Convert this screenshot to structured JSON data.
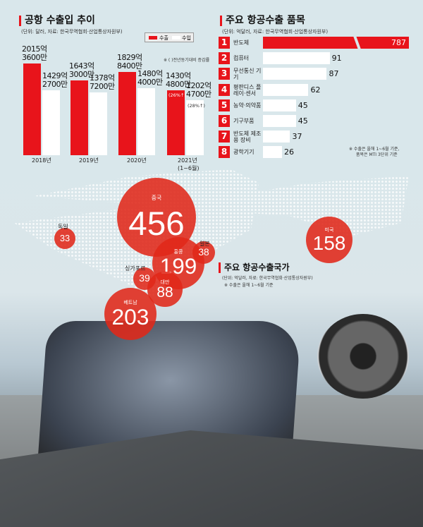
{
  "colors": {
    "export": "#e8141b",
    "import": "#ffffff",
    "bubble": "#e02819",
    "background": "#d9e7eb"
  },
  "chart_data": [
    {
      "type": "bar",
      "title": "공항 수출입 추이",
      "subtitle": "(단위: 달러, 자료: 한국무역협회·산업통상자원부)",
      "categories": [
        "2018년",
        "2019년",
        "2020년",
        "2021년 (1~6월)"
      ],
      "legend": [
        "수출",
        "수입"
      ],
      "note": "※ ( )전년동기대비 증감률",
      "series": [
        {
          "name": "수출",
          "values": [
            201536000000,
            164330000000,
            182984000000,
            143048000000
          ],
          "labels": [
            "2015억\n3600만",
            "1643억\n3000만",
            "1829억\n8400만",
            "1430억\n4800만"
          ]
        },
        {
          "name": "수입",
          "values": [
            142927000000,
            137872000000,
            148040000000,
            120247000000
          ],
          "labels": [
            "1429억\n2700만",
            "1378억\n7200만",
            "1480억\n4000만",
            "1202억\n4700만"
          ]
        }
      ],
      "annotations": {
        "export_2021": "(26%↑)",
        "import_2021": "(28%↑)"
      }
    },
    {
      "type": "bar",
      "orientation": "horizontal",
      "title": "주요 항공수출 품목",
      "subtitle": "(단위: 억달러, 자료: 한국무역협회·산업통상자원부)",
      "categories": [
        "반도체",
        "컴퓨터",
        "무선통신 기기",
        "평판디스 플레이·센서",
        "농약·의약품",
        "기구부품",
        "반도체 제조용 장비",
        "광학기기"
      ],
      "ranks": [
        "1",
        "2",
        "3",
        "4",
        "5",
        "6",
        "7",
        "8"
      ],
      "values": [
        787,
        91,
        87,
        62,
        45,
        45,
        37,
        26
      ],
      "note1": "※ 수출은 올해 1~6월 기준,",
      "note2": "품목은 MTI 3단위 기준"
    },
    {
      "type": "bubble",
      "title": "주요 항공수출국가",
      "subtitle": "(단위: 억달러, 자료: 한국무역협회·산업통상자원부)",
      "note": "※ 수출은 올해 1~6월 기준",
      "points": [
        {
          "name": "중국",
          "value": 456
        },
        {
          "name": "베트남",
          "value": 203
        },
        {
          "name": "홍콩",
          "value": 199
        },
        {
          "name": "미국",
          "value": 158
        },
        {
          "name": "대만",
          "value": 88
        },
        {
          "name": "싱가포르",
          "value": 39
        },
        {
          "name": "일본",
          "value": 38
        },
        {
          "name": "독일",
          "value": 33
        }
      ]
    }
  ]
}
